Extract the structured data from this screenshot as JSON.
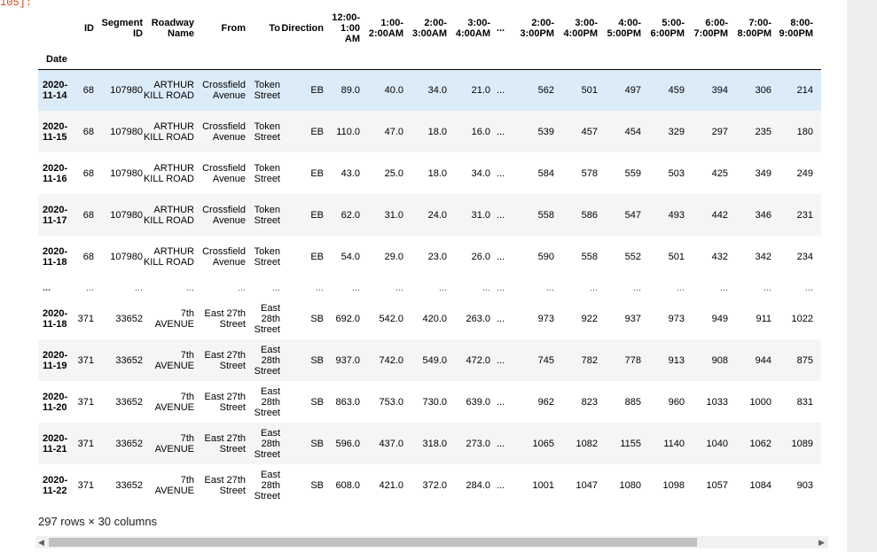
{
  "prompt": "105]:",
  "table": {
    "columns": [
      "ID",
      "Segment ID",
      "Roadway Name",
      "From",
      "To",
      "Direction",
      "12:00-1:00 AM",
      "1:00-2:00AM",
      "2:00-3:00AM",
      "3:00-4:00AM",
      "...",
      "2:00-3:00PM",
      "3:00-4:00PM",
      "4:00-5:00PM",
      "5:00-6:00PM",
      "6:00-7:00PM",
      "7:00-8:00PM",
      "8:00-9:00PM"
    ],
    "index_name": "Date",
    "rows": [
      [
        "2020-11-14",
        "68",
        "107980",
        "ARTHUR KILL ROAD",
        "Crossfield Avenue",
        "Token Street",
        "EB",
        "89.0",
        "40.0",
        "34.0",
        "21.0",
        "...",
        "562",
        "501",
        "497",
        "459",
        "394",
        "306",
        "214"
      ],
      [
        "2020-11-15",
        "68",
        "107980",
        "ARTHUR KILL ROAD",
        "Crossfield Avenue",
        "Token Street",
        "EB",
        "110.0",
        "47.0",
        "18.0",
        "16.0",
        "...",
        "539",
        "457",
        "454",
        "329",
        "297",
        "235",
        "180"
      ],
      [
        "2020-11-16",
        "68",
        "107980",
        "ARTHUR KILL ROAD",
        "Crossfield Avenue",
        "Token Street",
        "EB",
        "43.0",
        "25.0",
        "18.0",
        "34.0",
        "...",
        "584",
        "578",
        "559",
        "503",
        "425",
        "349",
        "249"
      ],
      [
        "2020-11-17",
        "68",
        "107980",
        "ARTHUR KILL ROAD",
        "Crossfield Avenue",
        "Token Street",
        "EB",
        "62.0",
        "31.0",
        "24.0",
        "31.0",
        "...",
        "558",
        "586",
        "547",
        "493",
        "442",
        "346",
        "231"
      ],
      [
        "2020-11-18",
        "68",
        "107980",
        "ARTHUR KILL ROAD",
        "Crossfield Avenue",
        "Token Street",
        "EB",
        "54.0",
        "29.0",
        "23.0",
        "26.0",
        "...",
        "590",
        "558",
        "552",
        "501",
        "432",
        "342",
        "234"
      ],
      [
        "...",
        "...",
        "...",
        "...",
        "...",
        "...",
        "...",
        "...",
        "...",
        "...",
        "...",
        "...",
        "...",
        "...",
        "...",
        "...",
        "...",
        "...",
        "..."
      ],
      [
        "2020-11-18",
        "371",
        "33652",
        "7th AVENUE",
        "East 27th Street",
        "East 28th Street",
        "SB",
        "692.0",
        "542.0",
        "420.0",
        "263.0",
        "...",
        "973",
        "922",
        "937",
        "973",
        "949",
        "911",
        "1022"
      ],
      [
        "2020-11-19",
        "371",
        "33652",
        "7th AVENUE",
        "East 27th Street",
        "East 28th Street",
        "SB",
        "937.0",
        "742.0",
        "549.0",
        "472.0",
        "...",
        "745",
        "782",
        "778",
        "913",
        "908",
        "944",
        "875"
      ],
      [
        "2020-11-20",
        "371",
        "33652",
        "7th AVENUE",
        "East 27th Street",
        "East 28th Street",
        "SB",
        "863.0",
        "753.0",
        "730.0",
        "639.0",
        "...",
        "962",
        "823",
        "885",
        "960",
        "1033",
        "1000",
        "831"
      ],
      [
        "2020-11-21",
        "371",
        "33652",
        "7th AVENUE",
        "East 27th Street",
        "East 28th Street",
        "SB",
        "596.0",
        "437.0",
        "318.0",
        "273.0",
        "...",
        "1065",
        "1082",
        "1155",
        "1140",
        "1040",
        "1062",
        "1089"
      ],
      [
        "2020-11-22",
        "371",
        "33652",
        "7th AVENUE",
        "East 27th Street",
        "East 28th Street",
        "SB",
        "608.0",
        "421.0",
        "372.0",
        "284.0",
        "...",
        "1001",
        "1047",
        "1080",
        "1098",
        "1057",
        "1084",
        "903"
      ]
    ]
  },
  "footer": "297 rows × 30 columns",
  "scrollbar": {
    "left_arrow": "◀",
    "right_arrow": "▶"
  }
}
